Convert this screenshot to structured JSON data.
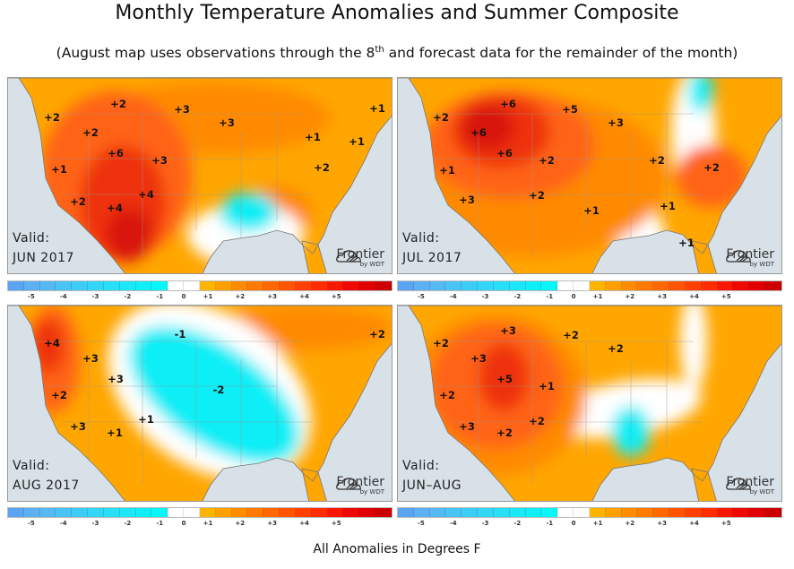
{
  "title": "Monthly Temperature Anomalies and Summer Composite",
  "subtitle": {
    "before": "(August map uses observations through the 8",
    "sup": "th",
    "after": " and forecast data for the remainder of the month)"
  },
  "footer": "All Anomalies in Degrees F",
  "logo": {
    "brand": "Frontier",
    "by": "by WDT"
  },
  "valid_label": "Valid:",
  "panels": [
    {
      "period": "JUN 2017",
      "labels": [
        "+2",
        "+2",
        "+3",
        "+3",
        "+1",
        "+2",
        "+6",
        "+3",
        "+1",
        "+1",
        "+2",
        "+1",
        "+4",
        "+2",
        "+4"
      ]
    },
    {
      "period": "JUL 2017",
      "labels": [
        "+6",
        "+5",
        "+2",
        "+3",
        "+6",
        "+6",
        "+2",
        "+2",
        "+2",
        "+1",
        "+2",
        "+3",
        "+1",
        "+1",
        "+1"
      ]
    },
    {
      "period": "AUG 2017",
      "labels": [
        "-1",
        "+2",
        "+4",
        "+3",
        "+3",
        "-2",
        "+2",
        "+1",
        "+3",
        "+1"
      ]
    },
    {
      "period": "JUN–AUG",
      "labels": [
        "+3",
        "+2",
        "+2",
        "+2",
        "+3",
        "+5",
        "+1",
        "+2",
        "+2",
        "+3",
        "+2"
      ]
    }
  ],
  "legend": {
    "ticks": [
      "-5",
      "-4",
      "-3",
      "-2",
      "-1",
      "0",
      "+1",
      "+2",
      "+3",
      "+4",
      "+5"
    ],
    "colors": [
      "#5aa4f2",
      "#5eb0f4",
      "#55baf4",
      "#48c4f6",
      "#3ccdf6",
      "#32d6f8",
      "#28dff8",
      "#1ce7f8",
      "#10eff8",
      "#08f6f8",
      "#ffffff",
      "#ffffff",
      "#ffb400",
      "#ffa000",
      "#ff8c00",
      "#ff7a00",
      "#ff6800",
      "#ff5400",
      "#ff4000",
      "#ff2c00",
      "#f81800",
      "#ee0800",
      "#e00000",
      "#cc0000"
    ]
  },
  "map_colors": {
    "ocean": "#d8e1e8",
    "warm1": "#ffa600",
    "warm2": "#ff8a00",
    "warm3": "#ff6414",
    "warm4": "#ee3010",
    "hot": "#d81208",
    "neutral": "#ffffff",
    "cool": "#10eef6"
  }
}
